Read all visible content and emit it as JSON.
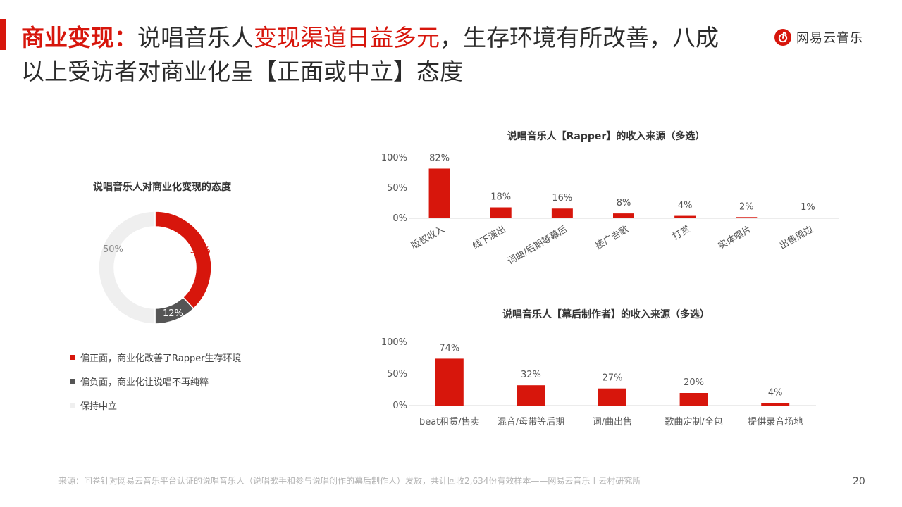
{
  "colors": {
    "accent": "#d7160c",
    "title_text": "#2b2b2b",
    "negative": "#555555",
    "neutral": "#efefef",
    "axis": "#d9d9d9"
  },
  "header": {
    "title_lead": "商业变现：",
    "title_part1": "说唱音乐人",
    "title_highlight": "变现渠道日益多元",
    "title_part2": "，生存环境有所改善，八成以上受访者对商业化呈【正面或中立】态度"
  },
  "logo": {
    "icon": "netease-cloud-music-icon",
    "text": "网易云音乐"
  },
  "chart_data": [
    {
      "type": "pie",
      "title": "说唱音乐人对商业化变现的态度",
      "categories": [
        "偏正面，商业化改善了Rapper生存环境",
        "偏负面，商业化让说唱不再纯粹",
        "保持中立"
      ],
      "values": [
        38,
        12,
        50
      ],
      "value_labels": [
        "38%",
        "12%",
        "50%"
      ],
      "colors": [
        "#d7160c",
        "#555555",
        "#efefef"
      ],
      "label_colors": [
        "#d7160c",
        "#ffffff",
        "#888888"
      ],
      "legend_position": "bottom-left"
    },
    {
      "type": "bar",
      "title": "说唱音乐人【Rapper】的收入来源（多选）",
      "categories": [
        "版权收入",
        "线下演出",
        "词曲/后期等幕后",
        "接广告歌",
        "打赏",
        "实体唱片",
        "出售周边"
      ],
      "values": [
        82,
        18,
        16,
        8,
        4,
        2,
        1
      ],
      "value_labels": [
        "82%",
        "18%",
        "16%",
        "8%",
        "4%",
        "2%",
        "1%"
      ],
      "ylim": [
        0,
        100
      ],
      "y_ticks": [
        "0%",
        "50%",
        "100%"
      ],
      "grid": false,
      "rotated_labels": true
    },
    {
      "type": "bar",
      "title": "说唱音乐人【幕后制作者】的收入来源（多选）",
      "categories": [
        "beat租赁/售卖",
        "混音/母带等后期",
        "词/曲出售",
        "歌曲定制/全包",
        "提供录音场地"
      ],
      "values": [
        74,
        32,
        27,
        20,
        4
      ],
      "value_labels": [
        "74%",
        "32%",
        "27%",
        "20%",
        "4%"
      ],
      "ylim": [
        0,
        100
      ],
      "y_ticks": [
        "0%",
        "50%",
        "100%"
      ],
      "grid": false,
      "rotated_labels": false
    }
  ],
  "footer": {
    "source": "来源：问卷针对网易云音乐平台认证的说唱音乐人（说唱歌手和参与说唱创作的幕后制作人）发放，共计回收2,634份有效样本——网易云音乐丨云村研究所",
    "page_number": "20"
  }
}
